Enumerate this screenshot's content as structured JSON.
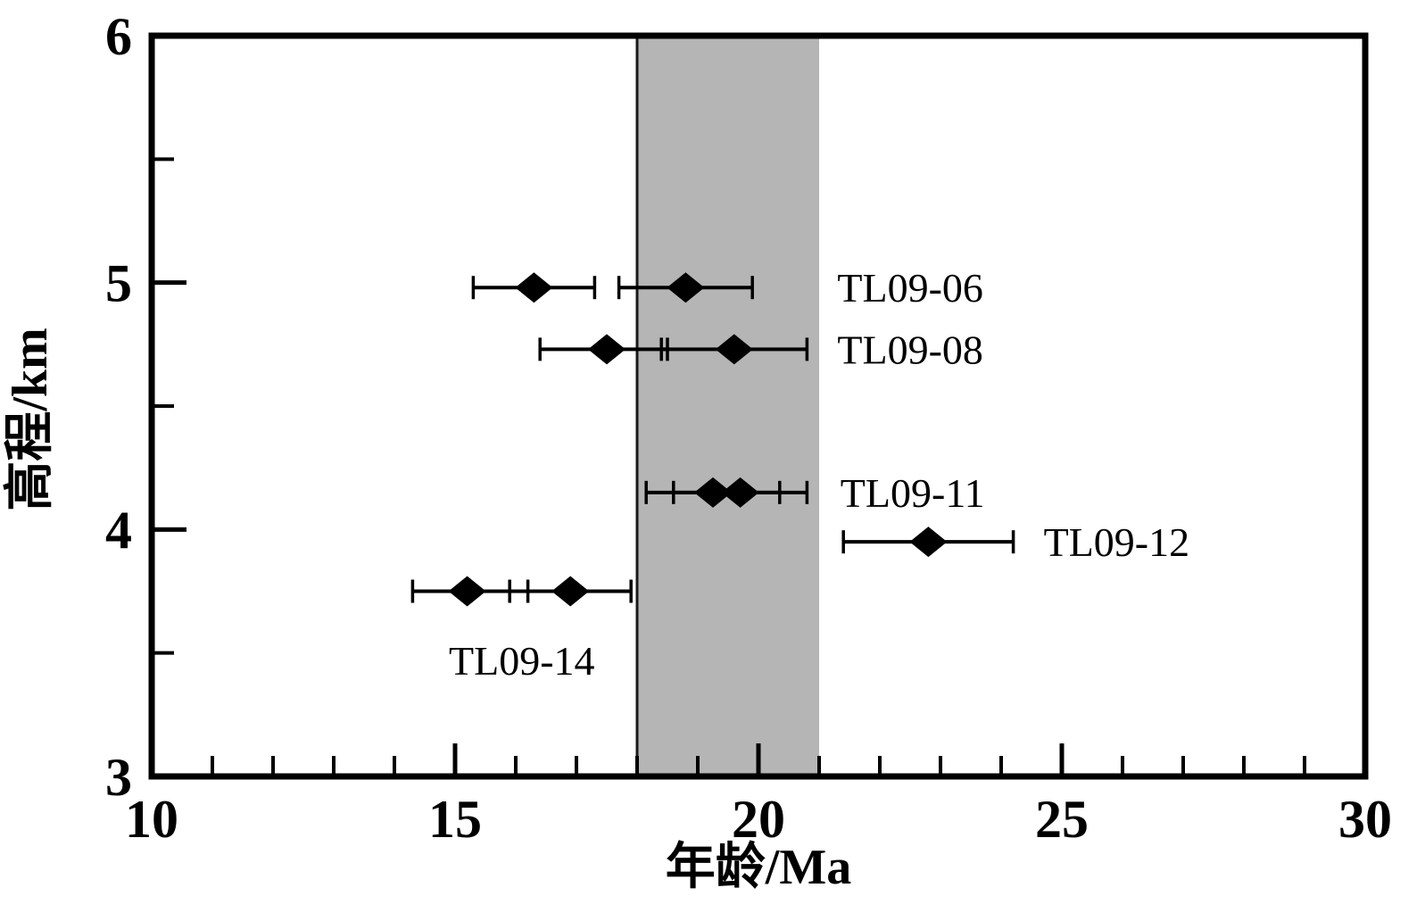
{
  "figure": {
    "background": "#ffffff",
    "border_color": "#000000"
  },
  "chart_data": {
    "type": "scatter",
    "title": "",
    "xlabel": "年龄/Ma",
    "ylabel": "高程/km",
    "xlim": [
      10,
      30
    ],
    "ylim": [
      3,
      6
    ],
    "x_major_ticks": [
      10,
      15,
      20,
      25,
      30
    ],
    "x_minor_step": 1,
    "y_major_ticks": [
      3,
      4,
      5,
      6
    ],
    "y_minor_step": 0.5,
    "grid": false,
    "legend": "none",
    "marker": {
      "shape": "diamond",
      "color": "#000000"
    },
    "band": {
      "x_from": 18.0,
      "x_to": 21.0,
      "color": "#b5b5b5",
      "edge_line_x": 18.0,
      "edge_line_color": "#1a1a1a"
    },
    "samples": [
      {
        "name": "TL09-06",
        "elevation": 4.98,
        "points": [
          {
            "age": 16.3,
            "err_minus": 1.0,
            "err_plus": 1.0
          },
          {
            "age": 18.8,
            "err_minus": 1.1,
            "err_plus": 1.1
          }
        ],
        "label": {
          "age": 21.3,
          "elevation": 4.98,
          "anchor": "start"
        }
      },
      {
        "name": "TL09-08",
        "elevation": 4.73,
        "points": [
          {
            "age": 17.5,
            "err_minus": 1.1,
            "err_plus": 1.0
          },
          {
            "age": 19.6,
            "err_minus": 1.2,
            "err_plus": 1.2
          }
        ],
        "label": {
          "age": 21.3,
          "elevation": 4.73,
          "anchor": "start"
        }
      },
      {
        "name": "TL09-11",
        "elevation": 4.15,
        "points": [
          {
            "age": 19.25,
            "err_minus": 1.1,
            "err_plus": 1.1
          },
          {
            "age": 19.7,
            "err_minus": 1.1,
            "err_plus": 1.1
          }
        ],
        "label": {
          "age": 21.35,
          "elevation": 4.15,
          "anchor": "start"
        }
      },
      {
        "name": "TL09-12",
        "elevation": 3.95,
        "points": [
          {
            "age": 22.8,
            "err_minus": 1.4,
            "err_plus": 1.4
          }
        ],
        "label": {
          "age": 24.7,
          "elevation": 3.95,
          "anchor": "start"
        }
      },
      {
        "name": "TL09-14",
        "elevation": 3.75,
        "points": [
          {
            "age": 15.2,
            "err_minus": 0.9,
            "err_plus": 1.0
          },
          {
            "age": 16.9,
            "err_minus": 1.0,
            "err_plus": 1.0
          }
        ],
        "label": {
          "age": 16.1,
          "elevation": 3.47,
          "anchor": "middle"
        }
      }
    ]
  }
}
